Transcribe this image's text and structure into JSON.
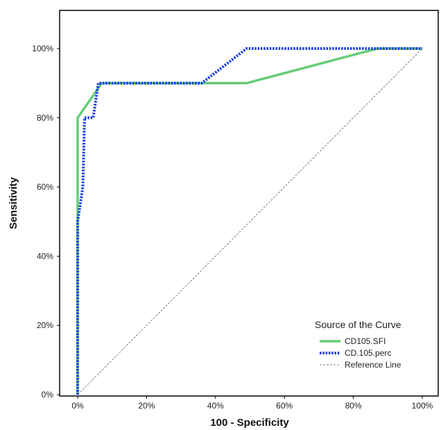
{
  "chart_data": {
    "type": "line",
    "xlabel": "100 - Specificity",
    "ylabel": "Sensitivity",
    "xlim": [
      0,
      100
    ],
    "ylim": [
      0,
      110
    ],
    "x_ticks": [
      "0%",
      "20%",
      "40%",
      "60%",
      "80%",
      "100%"
    ],
    "y_ticks": [
      "0%",
      "20%",
      "40%",
      "60%",
      "80%",
      "100%"
    ],
    "grid": false,
    "legend": {
      "title": "Source of the Curve",
      "placement": "bottom-right"
    },
    "series": [
      {
        "name": "CD105.SFI",
        "color": "#66cc77",
        "style": "solid",
        "points": [
          [
            0,
            0
          ],
          [
            0,
            50
          ],
          [
            0,
            80
          ],
          [
            7,
            90
          ],
          [
            49,
            90
          ],
          [
            87,
            100
          ],
          [
            100,
            100
          ]
        ]
      },
      {
        "name": "CD.105.perc",
        "color": "#1a3fe6",
        "style": "dotted",
        "points": [
          [
            0,
            0
          ],
          [
            0,
            50
          ],
          [
            1.5,
            60
          ],
          [
            2,
            80
          ],
          [
            4.5,
            80
          ],
          [
            6,
            90
          ],
          [
            36,
            90
          ],
          [
            49,
            100
          ],
          [
            100,
            100
          ]
        ]
      },
      {
        "name": "Reference Line",
        "color": "#808080",
        "style": "dashed",
        "points": [
          [
            0,
            0
          ],
          [
            100,
            100
          ]
        ]
      }
    ]
  }
}
